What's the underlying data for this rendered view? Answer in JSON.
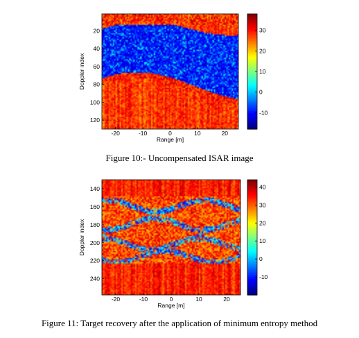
{
  "figures": [
    {
      "caption": "Figure 10:- Uncompensated ISAR image",
      "chart_data": {
        "type": "heatmap",
        "xlabel": "Range [m]",
        "ylabel": "Doppler index",
        "xlim": [
          -25,
          25
        ],
        "ylim": [
          130,
          1
        ],
        "x_ticks": [
          -20,
          -10,
          0,
          10,
          20
        ],
        "y_ticks": [
          20,
          40,
          60,
          80,
          100,
          120
        ],
        "colorbar": {
          "range": [
            -18,
            38
          ],
          "ticks": [
            30,
            20,
            10,
            0,
            -10
          ]
        },
        "colormap": "jet",
        "grid": false
      }
    },
    {
      "caption": "Figure 11: Target recovery after the application of minimum entropy method",
      "chart_data": {
        "type": "heatmap",
        "xlabel": "Range [m]",
        "ylabel": "Doppler index",
        "xlim": [
          -25,
          25
        ],
        "ylim": [
          258,
          130
        ],
        "x_ticks": [
          -20,
          -10,
          0,
          10,
          20
        ],
        "y_ticks": [
          140,
          160,
          180,
          200,
          220,
          240
        ],
        "colorbar": {
          "range": [
            -20,
            44
          ],
          "ticks": [
            40,
            30,
            20,
            10,
            0,
            -10
          ]
        },
        "colormap": "jet",
        "grid": false
      }
    }
  ]
}
